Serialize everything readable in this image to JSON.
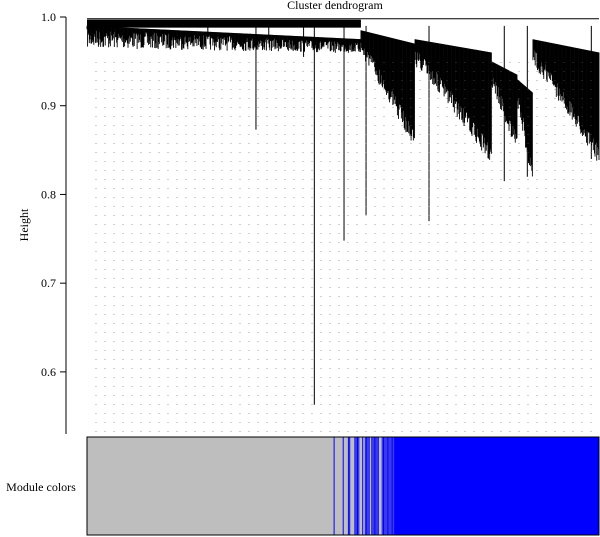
{
  "chart_data": {
    "type": "dendrogram",
    "title": "Cluster dendrogram",
    "ylabel": "Height",
    "xlabel": "",
    "ylim": [
      0.53,
      1.0
    ],
    "yticks": [
      0.6,
      0.7,
      0.8,
      0.9,
      1.0
    ],
    "ytick_labels": [
      "0.6",
      "0.7",
      "0.8",
      "0.9",
      "1.0"
    ],
    "grid": false,
    "gene_branches": {
      "index_range": [
        0,
        1000
      ],
      "min_height_notable": [
        {
          "pos": 0.444,
          "height": 0.563
        },
        {
          "pos": 0.502,
          "height": 0.748
        },
        {
          "pos": 0.33,
          "height": 0.873
        },
        {
          "pos": 0.423,
          "height": 0.955
        },
        {
          "pos": 0.236,
          "height": 0.975
        },
        {
          "pos": 0.355,
          "height": 0.975
        },
        {
          "pos": 0.545,
          "height": 0.777
        },
        {
          "pos": 0.668,
          "height": 0.77
        },
        {
          "pos": 0.815,
          "height": 0.815
        },
        {
          "pos": 0.86,
          "height": 0.82
        },
        {
          "pos": 0.985,
          "height": 0.84
        }
      ],
      "clusters": [
        {
          "start": 0.0,
          "end": 0.535,
          "base": 0.99,
          "floor": 0.955
        },
        {
          "start": 0.535,
          "end": 0.64,
          "base": 0.985,
          "floor": 0.86
        },
        {
          "start": 0.64,
          "end": 0.79,
          "base": 0.975,
          "floor": 0.84
        },
        {
          "start": 0.79,
          "end": 0.84,
          "base": 0.95,
          "floor": 0.86
        },
        {
          "start": 0.84,
          "end": 0.87,
          "base": 0.93,
          "floor": 0.82
        },
        {
          "start": 0.87,
          "end": 1.0,
          "base": 0.975,
          "floor": 0.84
        }
      ]
    },
    "module_colors": {
      "label": "Module colors",
      "segments": [
        {
          "start": 0.0,
          "end": 0.48,
          "color": "grey"
        },
        {
          "start": 0.48,
          "end": 0.6,
          "color": "mixed grey/blue"
        },
        {
          "start": 0.6,
          "end": 1.0,
          "color": "blue"
        }
      ],
      "colors": {
        "grey": "#bebebe",
        "blue": "#0000ff"
      }
    }
  }
}
